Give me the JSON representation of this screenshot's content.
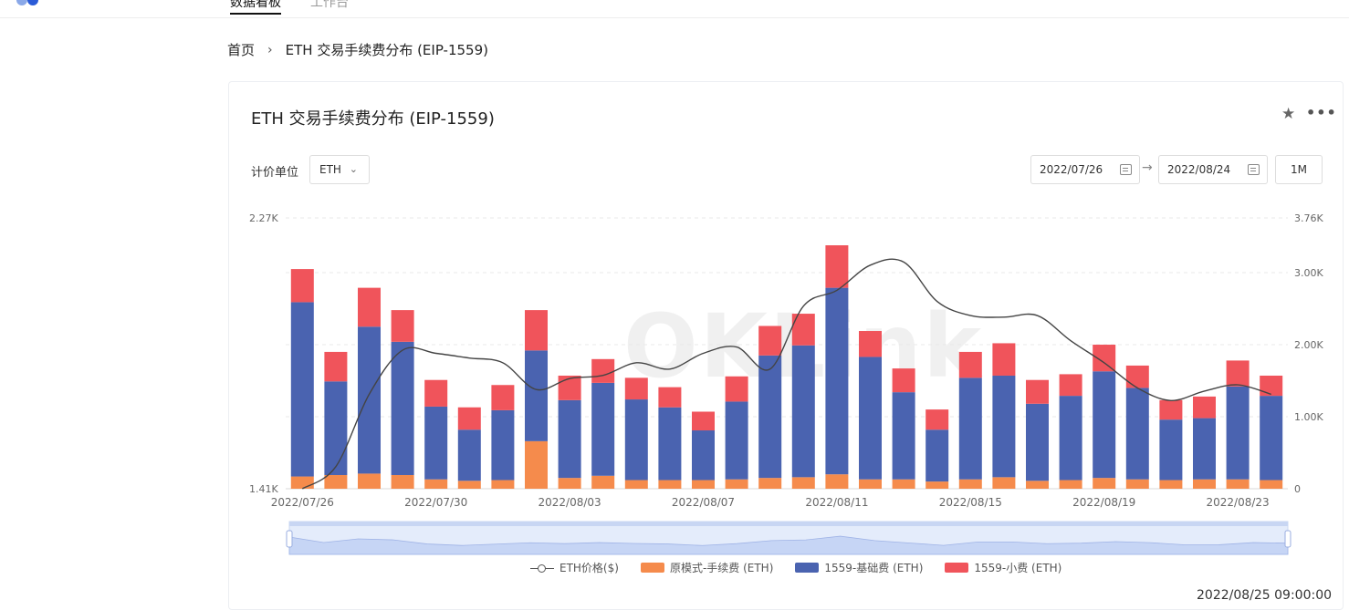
{
  "topbar": {
    "nav_cut": "",
    "nav_active": "数据看板",
    "nav_other": "工作台"
  },
  "breadcrumb": {
    "home": "首页",
    "separator": "›",
    "current": "ETH 交易手续费分布 (EIP-1559)"
  },
  "card": {
    "title": "ETH 交易手续费分布 (EIP-1559)",
    "unit_label": "计价单位",
    "unit_value": "ETH",
    "start_date": "2022/07/26",
    "end_date": "2022/08/24",
    "range_button": "1M",
    "timestamp": "2022/08/25 09:00:00",
    "watermark": "OKLink"
  },
  "colors": {
    "orange": "#f58b4c",
    "blue": "#4a63b0",
    "red": "#f0545b",
    "line": "#444444"
  },
  "chart_data": {
    "type": "bar",
    "stacked": true,
    "x": [
      "2022/07/26",
      "2022/07/27",
      "2022/07/28",
      "2022/07/29",
      "2022/07/30",
      "2022/07/31",
      "2022/08/01",
      "2022/08/02",
      "2022/08/03",
      "2022/08/04",
      "2022/08/05",
      "2022/08/06",
      "2022/08/07",
      "2022/08/08",
      "2022/08/09",
      "2022/08/10",
      "2022/08/11",
      "2022/08/12",
      "2022/08/13",
      "2022/08/14",
      "2022/08/15",
      "2022/08/16",
      "2022/08/17",
      "2022/08/18",
      "2022/08/19",
      "2022/08/20",
      "2022/08/21",
      "2022/08/22",
      "2022/08/23",
      "2022/08/24"
    ],
    "xtick_labels": [
      "2022/07/26",
      "2022/07/30",
      "2022/08/03",
      "2022/08/07",
      "2022/08/11",
      "2022/08/15",
      "2022/08/19",
      "2022/08/23"
    ],
    "y_right_ticks": [
      "0",
      "1.00K",
      "2.00K",
      "3.00K",
      "3.76K"
    ],
    "y_left_ticks": [
      "1.41K",
      "2.27K"
    ],
    "y_right_range": [
      0,
      3760
    ],
    "y_left_range": [
      1410,
      2270
    ],
    "series": [
      {
        "name": "原模式-手续费 (ETH)",
        "values": [
          170,
          190,
          210,
          190,
          130,
          110,
          120,
          660,
          150,
          180,
          120,
          120,
          120,
          130,
          150,
          160,
          200,
          130,
          130,
          100,
          130,
          160,
          110,
          120,
          150,
          130,
          120,
          130,
          130,
          120
        ]
      },
      {
        "name": "1559-基础费 (ETH)",
        "values": [
          2420,
          1300,
          2040,
          1850,
          1010,
          710,
          970,
          1260,
          1080,
          1290,
          1120,
          1010,
          690,
          1080,
          1700,
          1830,
          2590,
          1700,
          1210,
          720,
          1410,
          1410,
          1070,
          1170,
          1480,
          1270,
          840,
          850,
          1290,
          1170
        ]
      },
      {
        "name": "1559-小费 (ETH)",
        "values": [
          460,
          410,
          540,
          440,
          370,
          310,
          350,
          560,
          340,
          330,
          300,
          280,
          260,
          350,
          410,
          440,
          590,
          360,
          330,
          280,
          360,
          450,
          330,
          300,
          370,
          310,
          270,
          300,
          360,
          280
        ]
      }
    ],
    "line_series": {
      "name": "ETH价格($)",
      "values": [
        1410,
        1480,
        1710,
        1850,
        1840,
        1825,
        1810,
        1725,
        1760,
        1770,
        1810,
        1790,
        1840,
        1860,
        1790,
        1990,
        2040,
        2120,
        2130,
        2005,
        1960,
        1955,
        1960,
        1880,
        1810,
        1730,
        1690,
        1720,
        1740,
        1710
      ]
    },
    "legend": [
      "ETH价格($)",
      "原模式-手续费 (ETH)",
      "1559-基础费 (ETH)",
      "1559-小费 (ETH)"
    ],
    "legend_position": "bottom",
    "grid": true
  }
}
